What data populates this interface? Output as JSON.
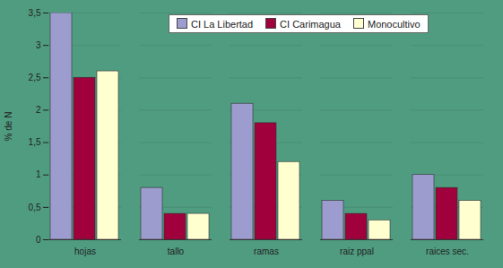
{
  "chart_data": {
    "type": "bar",
    "categories": [
      "hojas",
      "tallo",
      "ramas",
      "raiz ppal",
      "raices sec."
    ],
    "series": [
      {
        "name": "CI La Libertad",
        "color": "#9c9ccf",
        "values": [
          3.5,
          0.8,
          2.1,
          0.6,
          1.0
        ]
      },
      {
        "name": "CI Carimagua",
        "color": "#a0003c",
        "values": [
          2.5,
          0.4,
          1.8,
          0.4,
          0.8
        ]
      },
      {
        "name": "Monocultivo",
        "color": "#ffffd0",
        "values": [
          2.6,
          0.4,
          1.2,
          0.3,
          0.6
        ]
      }
    ],
    "y_label": "% de N",
    "ylim": [
      0,
      3.5
    ],
    "yticks": [
      0,
      {
        "value": 0.5,
        "label": "0,5"
      },
      1,
      {
        "value": 1.5,
        "label": "1,5"
      },
      2,
      {
        "value": 2.5,
        "label": "2,5"
      },
      3,
      {
        "value": 3.5,
        "label": "3,5"
      }
    ],
    "grid": true,
    "legend": "top"
  }
}
